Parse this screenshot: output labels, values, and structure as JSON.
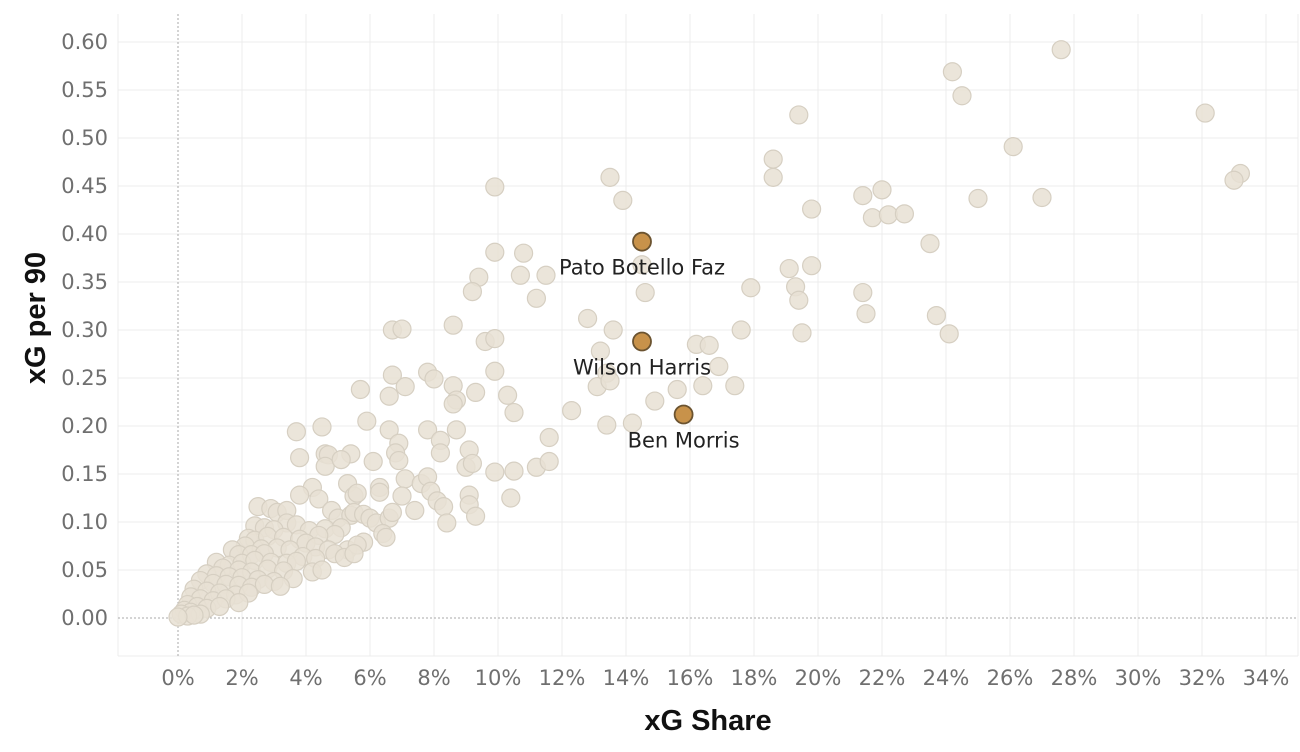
{
  "chart_data": {
    "type": "scatter",
    "xlabel": "xG Share",
    "ylabel": "xG per 90",
    "x_unit": "%",
    "xlim": [
      -2,
      35.5
    ],
    "ylim": [
      -0.04,
      0.63
    ],
    "x_ticks": [
      0,
      2,
      4,
      6,
      8,
      10,
      12,
      14,
      16,
      18,
      20,
      22,
      24,
      26,
      28,
      30,
      32,
      34
    ],
    "x_tick_labels": [
      "0%",
      "2%",
      "4%",
      "6%",
      "8%",
      "10%",
      "12%",
      "14%",
      "16%",
      "18%",
      "20%",
      "22%",
      "24%",
      "26%",
      "28%",
      "30%",
      "32%",
      "34%"
    ],
    "y_ticks": [
      0,
      0.05,
      0.1,
      0.15,
      0.2,
      0.25,
      0.3,
      0.35,
      0.4,
      0.45,
      0.5,
      0.55,
      0.6
    ],
    "y_tick_labels": [
      "0.00",
      "0.05",
      "0.10",
      "0.15",
      "0.20",
      "0.25",
      "0.30",
      "0.35",
      "0.40",
      "0.45",
      "0.50",
      "0.55",
      "0.60"
    ],
    "grid": true,
    "colors": {
      "background_points": "#e7e0d3",
      "background_stroke": "#d6cfc2",
      "highlight": "#c8924a",
      "highlight_stroke": "#6b5330"
    },
    "highlighted": [
      {
        "label": "Pato Botello Faz",
        "x": 14.5,
        "y": 0.392
      },
      {
        "label": "Wilson Harris",
        "x": 14.5,
        "y": 0.288
      },
      {
        "label": "Ben Morris",
        "x": 15.8,
        "y": 0.212
      }
    ],
    "points": [
      [
        27.6,
        0.592
      ],
      [
        24.2,
        0.569
      ],
      [
        24.5,
        0.544
      ],
      [
        19.4,
        0.524
      ],
      [
        32.1,
        0.526
      ],
      [
        26.1,
        0.491
      ],
      [
        18.6,
        0.478
      ],
      [
        18.6,
        0.459
      ],
      [
        33.2,
        0.463
      ],
      [
        33.0,
        0.456
      ],
      [
        13.5,
        0.459
      ],
      [
        9.9,
        0.449
      ],
      [
        13.9,
        0.435
      ],
      [
        22.0,
        0.446
      ],
      [
        21.4,
        0.44
      ],
      [
        25.0,
        0.437
      ],
      [
        27.0,
        0.438
      ],
      [
        19.8,
        0.426
      ],
      [
        21.7,
        0.417
      ],
      [
        22.2,
        0.42
      ],
      [
        22.7,
        0.421
      ],
      [
        23.5,
        0.39
      ],
      [
        9.9,
        0.381
      ],
      [
        10.8,
        0.38
      ],
      [
        14.5,
        0.368
      ],
      [
        19.1,
        0.364
      ],
      [
        19.8,
        0.367
      ],
      [
        11.5,
        0.357
      ],
      [
        10.7,
        0.357
      ],
      [
        9.4,
        0.355
      ],
      [
        9.2,
        0.34
      ],
      [
        11.2,
        0.333
      ],
      [
        14.6,
        0.339
      ],
      [
        17.9,
        0.344
      ],
      [
        19.3,
        0.345
      ],
      [
        21.4,
        0.339
      ],
      [
        19.4,
        0.331
      ],
      [
        21.5,
        0.317
      ],
      [
        23.7,
        0.315
      ],
      [
        12.8,
        0.312
      ],
      [
        13.6,
        0.3
      ],
      [
        17.6,
        0.3
      ],
      [
        19.5,
        0.297
      ],
      [
        24.1,
        0.296
      ],
      [
        6.7,
        0.3
      ],
      [
        7.0,
        0.301
      ],
      [
        8.6,
        0.305
      ],
      [
        9.6,
        0.288
      ],
      [
        9.9,
        0.291
      ],
      [
        16.2,
        0.285
      ],
      [
        16.6,
        0.284
      ],
      [
        13.2,
        0.278
      ],
      [
        16.9,
        0.262
      ],
      [
        13.4,
        0.255
      ],
      [
        13.1,
        0.241
      ],
      [
        7.8,
        0.256
      ],
      [
        8.0,
        0.249
      ],
      [
        6.7,
        0.253
      ],
      [
        9.9,
        0.257
      ],
      [
        13.5,
        0.247
      ],
      [
        16.4,
        0.242
      ],
      [
        17.4,
        0.242
      ],
      [
        15.6,
        0.238
      ],
      [
        5.7,
        0.238
      ],
      [
        7.1,
        0.241
      ],
      [
        8.6,
        0.242
      ],
      [
        9.3,
        0.235
      ],
      [
        10.3,
        0.232
      ],
      [
        6.6,
        0.231
      ],
      [
        14.9,
        0.226
      ],
      [
        8.7,
        0.227
      ],
      [
        8.6,
        0.223
      ],
      [
        10.5,
        0.214
      ],
      [
        12.3,
        0.216
      ],
      [
        5.9,
        0.205
      ],
      [
        13.4,
        0.201
      ],
      [
        14.2,
        0.203
      ],
      [
        3.7,
        0.194
      ],
      [
        4.5,
        0.199
      ],
      [
        6.6,
        0.196
      ],
      [
        7.8,
        0.196
      ],
      [
        8.7,
        0.196
      ],
      [
        11.6,
        0.188
      ],
      [
        6.9,
        0.182
      ],
      [
        8.2,
        0.185
      ],
      [
        9.1,
        0.175
      ],
      [
        3.8,
        0.167
      ],
      [
        4.6,
        0.171
      ],
      [
        4.7,
        0.17
      ],
      [
        5.4,
        0.171
      ],
      [
        6.1,
        0.163
      ],
      [
        6.8,
        0.172
      ],
      [
        6.9,
        0.164
      ],
      [
        8.2,
        0.172
      ],
      [
        4.6,
        0.158
      ],
      [
        5.1,
        0.165
      ],
      [
        9.0,
        0.157
      ],
      [
        9.2,
        0.161
      ],
      [
        9.9,
        0.152
      ],
      [
        10.5,
        0.153
      ],
      [
        11.2,
        0.157
      ],
      [
        11.6,
        0.163
      ],
      [
        7.1,
        0.145
      ],
      [
        7.6,
        0.14
      ],
      [
        7.8,
        0.147
      ],
      [
        5.3,
        0.14
      ],
      [
        4.2,
        0.136
      ],
      [
        3.8,
        0.128
      ],
      [
        6.3,
        0.136
      ],
      [
        6.3,
        0.131
      ],
      [
        5.5,
        0.127
      ],
      [
        5.6,
        0.13
      ],
      [
        4.4,
        0.124
      ],
      [
        7.0,
        0.127
      ],
      [
        7.9,
        0.132
      ],
      [
        8.1,
        0.122
      ],
      [
        9.1,
        0.128
      ],
      [
        9.1,
        0.118
      ],
      [
        8.3,
        0.116
      ],
      [
        10.4,
        0.125
      ],
      [
        2.5,
        0.116
      ],
      [
        2.9,
        0.114
      ],
      [
        3.1,
        0.11
      ],
      [
        3.4,
        0.112
      ],
      [
        4.8,
        0.112
      ],
      [
        5.0,
        0.104
      ],
      [
        5.4,
        0.107
      ],
      [
        5.5,
        0.11
      ],
      [
        5.8,
        0.108
      ],
      [
        6.0,
        0.104
      ],
      [
        6.2,
        0.099
      ],
      [
        6.6,
        0.104
      ],
      [
        6.7,
        0.11
      ],
      [
        7.4,
        0.112
      ],
      [
        8.4,
        0.099
      ],
      [
        9.3,
        0.106
      ],
      [
        3.4,
        0.099
      ],
      [
        3.7,
        0.097
      ],
      [
        2.4,
        0.096
      ],
      [
        2.7,
        0.094
      ],
      [
        3.0,
        0.092
      ],
      [
        4.1,
        0.091
      ],
      [
        4.6,
        0.093
      ],
      [
        5.1,
        0.094
      ],
      [
        4.9,
        0.087
      ],
      [
        6.4,
        0.088
      ],
      [
        6.5,
        0.084
      ],
      [
        5.8,
        0.079
      ],
      [
        2.2,
        0.083
      ],
      [
        2.4,
        0.081
      ],
      [
        2.8,
        0.085
      ],
      [
        3.3,
        0.084
      ],
      [
        3.8,
        0.082
      ],
      [
        4.4,
        0.086
      ],
      [
        4.0,
        0.078
      ],
      [
        4.3,
        0.074
      ],
      [
        4.7,
        0.071
      ],
      [
        5.3,
        0.071
      ],
      [
        5.6,
        0.076
      ],
      [
        2.1,
        0.075
      ],
      [
        2.6,
        0.072
      ],
      [
        3.1,
        0.073
      ],
      [
        3.5,
        0.071
      ],
      [
        1.7,
        0.071
      ],
      [
        1.9,
        0.066
      ],
      [
        2.3,
        0.066
      ],
      [
        2.7,
        0.067
      ],
      [
        3.9,
        0.064
      ],
      [
        4.3,
        0.062
      ],
      [
        4.9,
        0.067
      ],
      [
        5.2,
        0.063
      ],
      [
        5.5,
        0.067
      ],
      [
        1.2,
        0.058
      ],
      [
        1.6,
        0.055
      ],
      [
        2.0,
        0.057
      ],
      [
        2.4,
        0.06
      ],
      [
        2.9,
        0.058
      ],
      [
        3.4,
        0.057
      ],
      [
        3.7,
        0.059
      ],
      [
        1.4,
        0.052
      ],
      [
        1.9,
        0.05
      ],
      [
        2.3,
        0.048
      ],
      [
        2.8,
        0.051
      ],
      [
        3.3,
        0.049
      ],
      [
        4.2,
        0.048
      ],
      [
        4.5,
        0.05
      ],
      [
        0.9,
        0.046
      ],
      [
        1.2,
        0.044
      ],
      [
        1.6,
        0.043
      ],
      [
        2.0,
        0.042
      ],
      [
        2.5,
        0.04
      ],
      [
        3.0,
        0.038
      ],
      [
        3.6,
        0.041
      ],
      [
        0.7,
        0.039
      ],
      [
        1.1,
        0.036
      ],
      [
        1.5,
        0.035
      ],
      [
        1.9,
        0.034
      ],
      [
        2.3,
        0.032
      ],
      [
        2.7,
        0.035
      ],
      [
        3.2,
        0.033
      ],
      [
        0.5,
        0.03
      ],
      [
        0.9,
        0.028
      ],
      [
        1.3,
        0.026
      ],
      [
        1.8,
        0.024
      ],
      [
        2.2,
        0.026
      ],
      [
        0.4,
        0.022
      ],
      [
        0.7,
        0.02
      ],
      [
        1.1,
        0.018
      ],
      [
        1.5,
        0.02
      ],
      [
        1.9,
        0.016
      ],
      [
        0.3,
        0.014
      ],
      [
        0.6,
        0.012
      ],
      [
        0.9,
        0.01
      ],
      [
        1.3,
        0.012
      ],
      [
        0.2,
        0.008
      ],
      [
        0.4,
        0.006
      ],
      [
        0.7,
        0.004
      ],
      [
        0.1,
        0.004
      ],
      [
        0.3,
        0.002
      ],
      [
        0.5,
        0.003
      ],
      [
        0.0,
        0.001
      ]
    ]
  }
}
